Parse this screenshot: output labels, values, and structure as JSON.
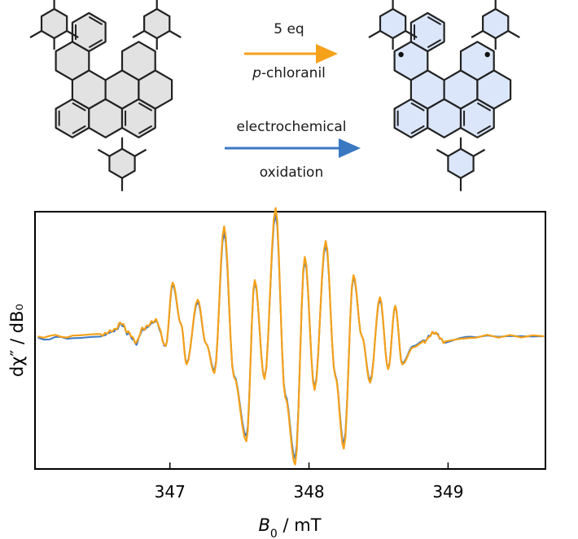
{
  "reaction": {
    "top_arrow_line1": "5 eq",
    "top_arrow_line2_italic": "p",
    "top_arrow_line2_rest": "-chloranil",
    "bottom_arrow_line1": "electrochemical",
    "bottom_arrow_line2": "oxidation",
    "colors": {
      "chemical": "#f5a11a",
      "electrochemical": "#3a78c2",
      "fill_left": "#e2e2e2",
      "fill_right": "#dbe6fa"
    }
  },
  "chart_data": {
    "type": "line",
    "xlabel_symbol": "B",
    "xlabel_sub": "0",
    "xlabel_unit": " / mT",
    "ylabel": "dχ″ / dB₀",
    "xlim": [
      346.03,
      349.7
    ],
    "ylim": [
      -1.0,
      1.0
    ],
    "xticks": [
      347,
      348,
      349
    ],
    "xticklabels": [
      "347",
      "348",
      "349"
    ],
    "yticks": [],
    "grid": false,
    "series": [
      {
        "color": "#3a78c2",
        "points": [
          [
            346.05,
            -0.02
          ],
          [
            346.3,
            -0.01
          ],
          [
            346.5,
            0.0
          ],
          [
            346.6,
            0.04
          ],
          [
            346.65,
            0.1
          ],
          [
            346.7,
            0.02
          ],
          [
            346.76,
            -0.06
          ],
          [
            346.8,
            0.05
          ],
          [
            346.9,
            0.12
          ],
          [
            346.97,
            -0.08
          ],
          [
            347.02,
            0.42
          ],
          [
            347.08,
            0.1
          ],
          [
            347.12,
            -0.22
          ],
          [
            347.2,
            0.28
          ],
          [
            347.26,
            -0.06
          ],
          [
            347.32,
            -0.28
          ],
          [
            347.39,
            0.85
          ],
          [
            347.46,
            -0.32
          ],
          [
            347.55,
            -0.82
          ],
          [
            347.61,
            0.44
          ],
          [
            347.68,
            -0.34
          ],
          [
            347.76,
            1.0
          ],
          [
            347.83,
            -0.48
          ],
          [
            347.9,
            -1.0
          ],
          [
            347.97,
            0.62
          ],
          [
            348.04,
            -0.42
          ],
          [
            348.12,
            0.75
          ],
          [
            348.19,
            -0.32
          ],
          [
            348.25,
            -0.88
          ],
          [
            348.32,
            0.48
          ],
          [
            348.38,
            0.0
          ],
          [
            348.44,
            -0.36
          ],
          [
            348.51,
            0.3
          ],
          [
            348.57,
            -0.26
          ],
          [
            348.62,
            0.24
          ],
          [
            348.67,
            -0.22
          ],
          [
            348.75,
            -0.08
          ],
          [
            348.82,
            -0.04
          ],
          [
            348.9,
            0.03
          ],
          [
            348.98,
            -0.05
          ],
          [
            349.2,
            0.0
          ],
          [
            349.69,
            0.0
          ]
        ]
      },
      {
        "color": "#f5a11a",
        "points": [
          [
            346.05,
            0.0
          ],
          [
            346.3,
            0.0
          ],
          [
            346.5,
            0.01
          ],
          [
            346.6,
            0.05
          ],
          [
            346.65,
            0.11
          ],
          [
            346.7,
            0.03
          ],
          [
            346.76,
            -0.05
          ],
          [
            346.8,
            0.06
          ],
          [
            346.9,
            0.13
          ],
          [
            346.97,
            -0.08
          ],
          [
            347.02,
            0.44
          ],
          [
            347.08,
            0.1
          ],
          [
            347.12,
            -0.23
          ],
          [
            347.2,
            0.3
          ],
          [
            347.26,
            -0.06
          ],
          [
            347.32,
            -0.3
          ],
          [
            347.39,
            0.9
          ],
          [
            347.46,
            -0.33
          ],
          [
            347.55,
            -0.86
          ],
          [
            347.61,
            0.46
          ],
          [
            347.68,
            -0.35
          ],
          [
            347.76,
            1.05
          ],
          [
            347.83,
            -0.5
          ],
          [
            347.9,
            -1.05
          ],
          [
            347.97,
            0.65
          ],
          [
            348.04,
            -0.44
          ],
          [
            348.12,
            0.78
          ],
          [
            348.19,
            -0.33
          ],
          [
            348.25,
            -0.92
          ],
          [
            348.32,
            0.5
          ],
          [
            348.38,
            0.0
          ],
          [
            348.44,
            -0.38
          ],
          [
            348.51,
            0.32
          ],
          [
            348.57,
            -0.27
          ],
          [
            348.62,
            0.25
          ],
          [
            348.67,
            -0.23
          ],
          [
            348.75,
            -0.09
          ],
          [
            348.82,
            -0.05
          ],
          [
            348.9,
            0.03
          ],
          [
            348.98,
            -0.05
          ],
          [
            349.2,
            0.0
          ],
          [
            349.69,
            0.0
          ]
        ]
      }
    ]
  }
}
